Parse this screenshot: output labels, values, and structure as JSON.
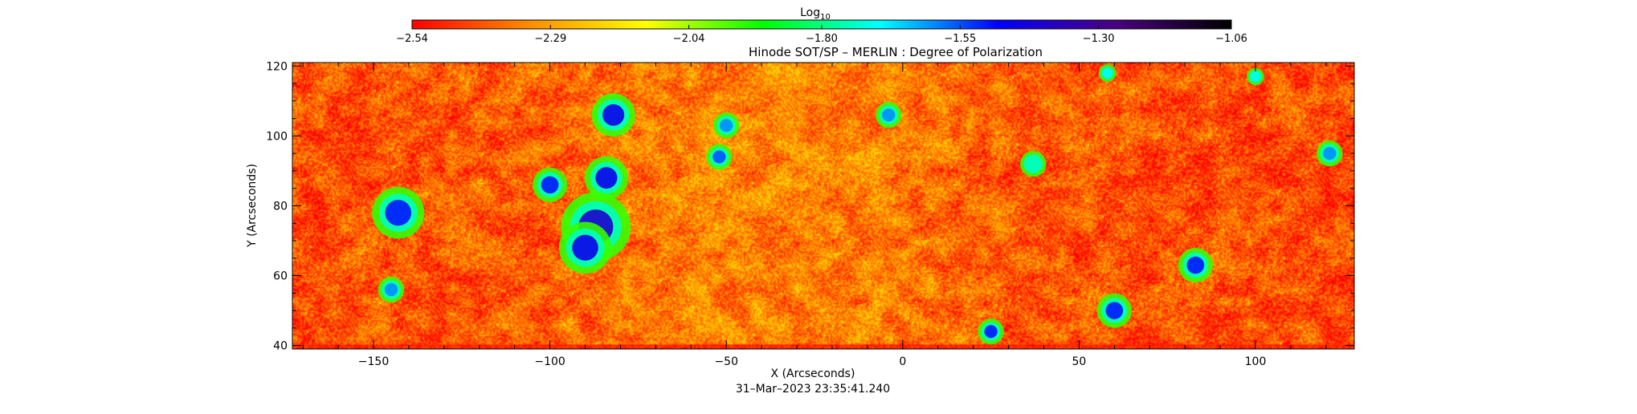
{
  "chart_data": {
    "type": "heatmap",
    "title": "Hinode SOT/SP – MERLIN : Degree of Polarization",
    "xlabel": "X (Arcseconds)",
    "ylabel": "Y (Arcseconds)",
    "footer": "31–Mar–2023 23:35:41.240",
    "xlim": [
      -173,
      128
    ],
    "ylim": [
      39,
      121
    ],
    "x_ticks": [
      -150,
      -100,
      -50,
      0,
      50,
      100
    ],
    "y_ticks": [
      40,
      60,
      80,
      100,
      120
    ],
    "grid": false,
    "colorbar": {
      "label_base": "Log",
      "label_sub": "10",
      "placement": "top",
      "range": [
        -2.54,
        -1.06
      ],
      "ticks": [
        -2.54,
        -2.29,
        -2.04,
        -1.8,
        -1.55,
        -1.3,
        -1.06
      ],
      "tick_labels": [
        "−2.54",
        "−2.29",
        "−2.04",
        "−1.80",
        "−1.55",
        "−1.30",
        "−1.06"
      ],
      "colors": [
        "#ff0000",
        "#ff8c00",
        "#ffff00",
        "#00ff00",
        "#00ffff",
        "#0000ff",
        "#4b0082",
        "#000000"
      ]
    },
    "background_value": -2.35,
    "features": [
      {
        "x": -82,
        "y": 106,
        "r": 2.5,
        "value": -1.45
      },
      {
        "x": -84,
        "y": 88,
        "r": 2.5,
        "value": -1.45
      },
      {
        "x": -100,
        "y": 86,
        "r": 2,
        "value": -1.5
      },
      {
        "x": -87,
        "y": 74,
        "r": 4,
        "value": -1.4
      },
      {
        "x": -90,
        "y": 68,
        "r": 3,
        "value": -1.45
      },
      {
        "x": -143,
        "y": 78,
        "r": 3,
        "value": -1.5
      },
      {
        "x": -145,
        "y": 56,
        "r": 1.5,
        "value": -1.6
      },
      {
        "x": -52,
        "y": 94,
        "r": 1.5,
        "value": -1.55
      },
      {
        "x": -50,
        "y": 103,
        "r": 1.5,
        "value": -1.6
      },
      {
        "x": -4,
        "y": 106,
        "r": 1.5,
        "value": -1.6
      },
      {
        "x": 25,
        "y": 44,
        "r": 1.5,
        "value": -1.5
      },
      {
        "x": 60,
        "y": 50,
        "r": 2,
        "value": -1.5
      },
      {
        "x": 83,
        "y": 63,
        "r": 2,
        "value": -1.5
      },
      {
        "x": 121,
        "y": 95,
        "r": 1.5,
        "value": -1.6
      },
      {
        "x": 58,
        "y": 118,
        "r": 1,
        "value": -1.7
      },
      {
        "x": 100,
        "y": 117,
        "r": 1,
        "value": -1.7
      },
      {
        "x": 37,
        "y": 92,
        "r": 1.5,
        "value": -1.75
      }
    ]
  }
}
